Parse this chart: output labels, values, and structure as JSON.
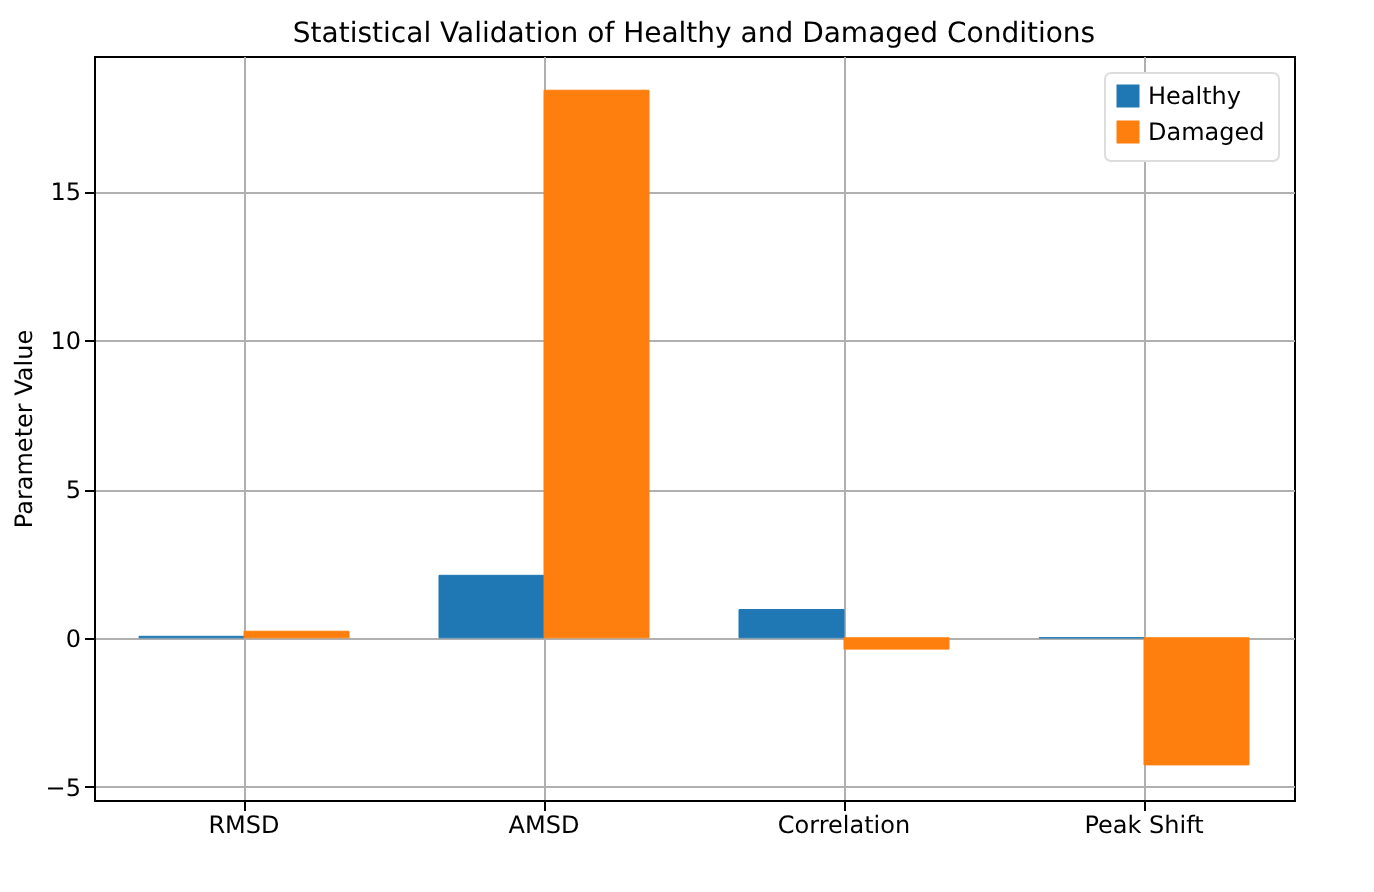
{
  "chart_data": {
    "type": "bar",
    "title": "Statistical Validation of Healthy and Damaged Conditions",
    "ylabel": "Parameter Value",
    "categories": [
      "RMSD",
      "AMSD",
      "Correlation",
      "Peak Shift"
    ],
    "series": [
      {
        "name": "Healthy",
        "color": "#1f77b4",
        "values": [
          0.05,
          2.1,
          0.95,
          0
        ]
      },
      {
        "name": "Damaged",
        "color": "#ff7f0e",
        "values": [
          0.22,
          18.4,
          -0.38,
          -4.27
        ]
      }
    ],
    "ylim": [
      -5.45,
      19.55
    ],
    "yticks": [
      -5,
      0,
      5,
      10,
      15
    ],
    "grid": true,
    "legend": "top right"
  }
}
